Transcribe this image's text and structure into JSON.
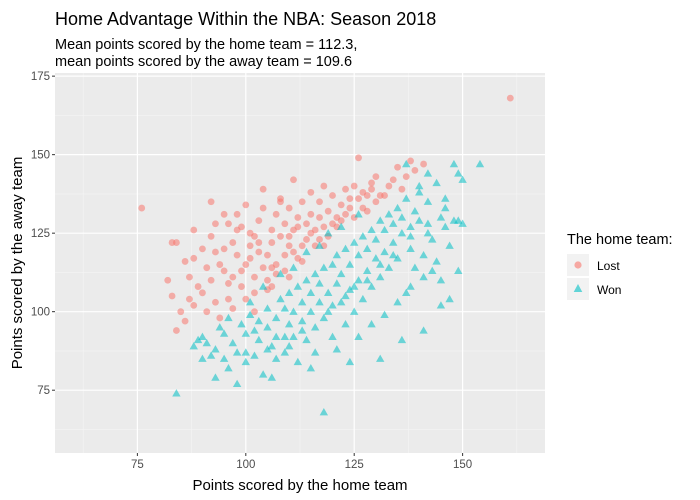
{
  "chart_data": {
    "type": "scatter",
    "title": "Home Advantage Within the NBA: Season 2018",
    "subtitle_lines": [
      "Mean points scored by the home team = 112.3,",
      "mean points scored by the away team = 109.6"
    ],
    "xlabel": "Points scored by the home team",
    "ylabel": "Points scored by the away team",
    "xlim": [
      56,
      169
    ],
    "ylim": [
      55,
      176
    ],
    "x_ticks": [
      75,
      100,
      125,
      150
    ],
    "y_ticks": [
      75,
      100,
      125,
      150,
      175
    ],
    "grid": true,
    "legend": {
      "title": "The home team:",
      "position": "right",
      "items": [
        {
          "label": "Lost",
          "color": "#F8766D",
          "shape": "circle"
        },
        {
          "label": "Won",
          "color": "#00BFC4",
          "shape": "triangle"
        }
      ]
    },
    "series": [
      {
        "name": "Lost",
        "color": "#F8766D",
        "shape": "circle",
        "points": [
          [
            76,
            133
          ],
          [
            83,
            122
          ],
          [
            84,
            122
          ],
          [
            82,
            110
          ],
          [
            83,
            105
          ],
          [
            85,
            100
          ],
          [
            84,
            94
          ],
          [
            86,
            97
          ],
          [
            88,
            102
          ],
          [
            87,
            111
          ],
          [
            88,
            117
          ],
          [
            90,
            120
          ],
          [
            90,
            106
          ],
          [
            92,
            110
          ],
          [
            92,
            124
          ],
          [
            93,
            128
          ],
          [
            94,
            115
          ],
          [
            95,
            120
          ],
          [
            95,
            131
          ],
          [
            96,
            104
          ],
          [
            97,
            111
          ],
          [
            97,
            122
          ],
          [
            98,
            126
          ],
          [
            98,
            118
          ],
          [
            99,
            108
          ],
          [
            100,
            115
          ],
          [
            100,
            134
          ],
          [
            101,
            121
          ],
          [
            102,
            111
          ],
          [
            102,
            124
          ],
          [
            103,
            129
          ],
          [
            104,
            114
          ],
          [
            104,
            133
          ],
          [
            105,
            118
          ],
          [
            105,
            107
          ],
          [
            106,
            126
          ],
          [
            106,
            122
          ],
          [
            107,
            131
          ],
          [
            107,
            112
          ],
          [
            108,
            136
          ],
          [
            108,
            124
          ],
          [
            109,
            118
          ],
          [
            109,
            128
          ],
          [
            110,
            133
          ],
          [
            110,
            121
          ],
          [
            111,
            142
          ],
          [
            111,
            126
          ],
          [
            112,
            117
          ],
          [
            112,
            130
          ],
          [
            113,
            135
          ],
          [
            114,
            123
          ],
          [
            114,
            128
          ],
          [
            115,
            138
          ],
          [
            115,
            125
          ],
          [
            116,
            121
          ],
          [
            117,
            135
          ],
          [
            117,
            130
          ],
          [
            118,
            127
          ],
          [
            118,
            140
          ],
          [
            119,
            132
          ],
          [
            120,
            128
          ],
          [
            120,
            137
          ],
          [
            121,
            130
          ],
          [
            122,
            134
          ],
          [
            123,
            139
          ],
          [
            123,
            131
          ],
          [
            124,
            133
          ],
          [
            125,
            140
          ],
          [
            126,
            149
          ],
          [
            126,
            136
          ],
          [
            127,
            138
          ],
          [
            128,
            137
          ],
          [
            129,
            141
          ],
          [
            129,
            139
          ],
          [
            130,
            143
          ],
          [
            131,
            137
          ],
          [
            132,
            137
          ],
          [
            133,
            140
          ],
          [
            134,
            142
          ],
          [
            135,
            146
          ],
          [
            136,
            139
          ],
          [
            137,
            143
          ],
          [
            138,
            148
          ],
          [
            139,
            145
          ],
          [
            141,
            147
          ],
          [
            161,
            168
          ],
          [
            91,
            100
          ],
          [
            93,
            103
          ],
          [
            96,
            109
          ],
          [
            99,
            113
          ],
          [
            101,
            117
          ],
          [
            103,
            119
          ],
          [
            89,
            108
          ],
          [
            94,
            98
          ],
          [
            97,
            101
          ],
          [
            100,
            104
          ],
          [
            102,
            106
          ],
          [
            105,
            110
          ],
          [
            107,
            115
          ],
          [
            109,
            113
          ],
          [
            111,
            119
          ],
          [
            113,
            121
          ],
          [
            116,
            126
          ],
          [
            119,
            124
          ],
          [
            121,
            127
          ],
          [
            92,
            135
          ],
          [
            96,
            128
          ],
          [
            98,
            131
          ],
          [
            104,
            139
          ],
          [
            108,
            135
          ],
          [
            86,
            116
          ],
          [
            88,
            126
          ],
          [
            95,
            113
          ],
          [
            103,
            122
          ],
          [
            110,
            124
          ],
          [
            112,
            127
          ],
          [
            115,
            131
          ],
          [
            117,
            123
          ],
          [
            122,
            129
          ],
          [
            124,
            136
          ],
          [
            91,
            114
          ],
          [
            93,
            119
          ],
          [
            101,
            125
          ],
          [
            106,
            114
          ],
          [
            87,
            104
          ],
          [
            99,
            127
          ],
          [
            102,
            100
          ],
          [
            106,
            108
          ],
          [
            110,
            111
          ],
          [
            113,
            116
          ],
          [
            118,
            121
          ],
          [
            125,
            130
          ],
          [
            127,
            133
          ],
          [
            130,
            135
          ],
          [
            128,
            132
          ]
        ]
      },
      {
        "name": "Won",
        "color": "#00BFC4",
        "shape": "triangle",
        "points": [
          [
            84,
            74
          ],
          [
            88,
            89
          ],
          [
            90,
            85
          ],
          [
            90,
            92
          ],
          [
            93,
            79
          ],
          [
            93,
            88
          ],
          [
            95,
            93
          ],
          [
            96,
            82
          ],
          [
            97,
            90
          ],
          [
            98,
            87
          ],
          [
            99,
            96
          ],
          [
            100,
            84
          ],
          [
            100,
            93
          ],
          [
            101,
            99
          ],
          [
            102,
            86
          ],
          [
            103,
            91
          ],
          [
            103,
            97
          ],
          [
            104,
            80
          ],
          [
            105,
            95
          ],
          [
            105,
            101
          ],
          [
            106,
            89
          ],
          [
            107,
            98
          ],
          [
            107,
            92
          ],
          [
            108,
            104
          ],
          [
            109,
            87
          ],
          [
            109,
            101
          ],
          [
            110,
            96
          ],
          [
            110,
            106
          ],
          [
            111,
            92
          ],
          [
            111,
            100
          ],
          [
            112,
            108
          ],
          [
            112,
            84
          ],
          [
            113,
            97
          ],
          [
            113,
            103
          ],
          [
            114,
            110
          ],
          [
            114,
            91
          ],
          [
            115,
            100
          ],
          [
            115,
            106
          ],
          [
            116,
            112
          ],
          [
            116,
            95
          ],
          [
            117,
            103
          ],
          [
            117,
            109
          ],
          [
            118,
            114
          ],
          [
            118,
            68
          ],
          [
            119,
            100
          ],
          [
            119,
            106
          ],
          [
            120,
            115
          ],
          [
            120,
            92
          ],
          [
            121,
            109
          ],
          [
            121,
            118
          ],
          [
            122,
            103
          ],
          [
            122,
            112
          ],
          [
            123,
            120
          ],
          [
            123,
            96
          ],
          [
            124,
            107
          ],
          [
            124,
            115
          ],
          [
            125,
            122
          ],
          [
            125,
            100
          ],
          [
            126,
            110
          ],
          [
            126,
            118
          ],
          [
            127,
            124
          ],
          [
            127,
            104
          ],
          [
            128,
            113
          ],
          [
            128,
            120
          ],
          [
            129,
            126
          ],
          [
            129,
            108
          ],
          [
            130,
            117
          ],
          [
            130,
            123
          ],
          [
            131,
            129
          ],
          [
            131,
            111
          ],
          [
            132,
            119
          ],
          [
            132,
            126
          ],
          [
            133,
            131
          ],
          [
            133,
            114
          ],
          [
            134,
            122
          ],
          [
            134,
            128
          ],
          [
            135,
            133
          ],
          [
            135,
            117
          ],
          [
            136,
            125
          ],
          [
            136,
            130
          ],
          [
            137,
            106
          ],
          [
            137,
            136
          ],
          [
            138,
            120
          ],
          [
            138,
            127
          ],
          [
            139,
            114
          ],
          [
            139,
            132
          ],
          [
            140,
            129
          ],
          [
            140,
            138
          ],
          [
            141,
            118
          ],
          [
            141,
            111
          ],
          [
            142,
            125
          ],
          [
            142,
            135
          ],
          [
            143,
            123
          ],
          [
            144,
            141
          ],
          [
            144,
            116
          ],
          [
            145,
            130
          ],
          [
            145,
            110
          ],
          [
            146,
            127
          ],
          [
            146,
            136
          ],
          [
            148,
            147
          ],
          [
            149,
            144
          ],
          [
            150,
            128
          ],
          [
            150,
            142
          ],
          [
            154,
            147
          ],
          [
            149,
            113
          ],
          [
            147,
            104
          ],
          [
            145,
            102
          ],
          [
            141,
            94
          ],
          [
            136,
            91
          ],
          [
            131,
            85
          ],
          [
            124,
            84
          ],
          [
            115,
            82
          ],
          [
            106,
            79
          ],
          [
            98,
            77
          ],
          [
            92,
            86
          ],
          [
            94,
            95
          ],
          [
            96,
            98
          ],
          [
            101,
            103
          ],
          [
            104,
            108
          ],
          [
            108,
            112
          ],
          [
            111,
            114
          ],
          [
            114,
            119
          ],
          [
            117,
            121
          ],
          [
            119,
            125
          ],
          [
            122,
            127
          ],
          [
            126,
            131
          ],
          [
            89,
            91
          ],
          [
            102,
            94
          ],
          [
            107,
            85
          ],
          [
            110,
            89
          ],
          [
            116,
            87
          ],
          [
            121,
            88
          ],
          [
            126,
            92
          ],
          [
            129,
            96
          ],
          [
            132,
            99
          ],
          [
            135,
            103
          ],
          [
            138,
            108
          ],
          [
            143,
            113
          ],
          [
            148,
            129
          ],
          [
            140,
            140
          ],
          [
            137,
            147
          ],
          [
            142,
            144
          ],
          [
            128,
            110
          ],
          [
            123,
            105
          ],
          [
            118,
            98
          ],
          [
            113,
            94
          ],
          [
            109,
            92
          ],
          [
            105,
            88
          ],
          [
            100,
            87
          ],
          [
            95,
            85
          ],
          [
            91,
            90
          ],
          [
            120,
            102
          ],
          [
            125,
            108
          ],
          [
            131,
            115
          ],
          [
            134,
            118
          ],
          [
            138,
            124
          ],
          [
            142,
            128
          ],
          [
            146,
            133
          ],
          [
            147,
            121
          ],
          [
            149,
            129
          ]
        ]
      }
    ]
  }
}
